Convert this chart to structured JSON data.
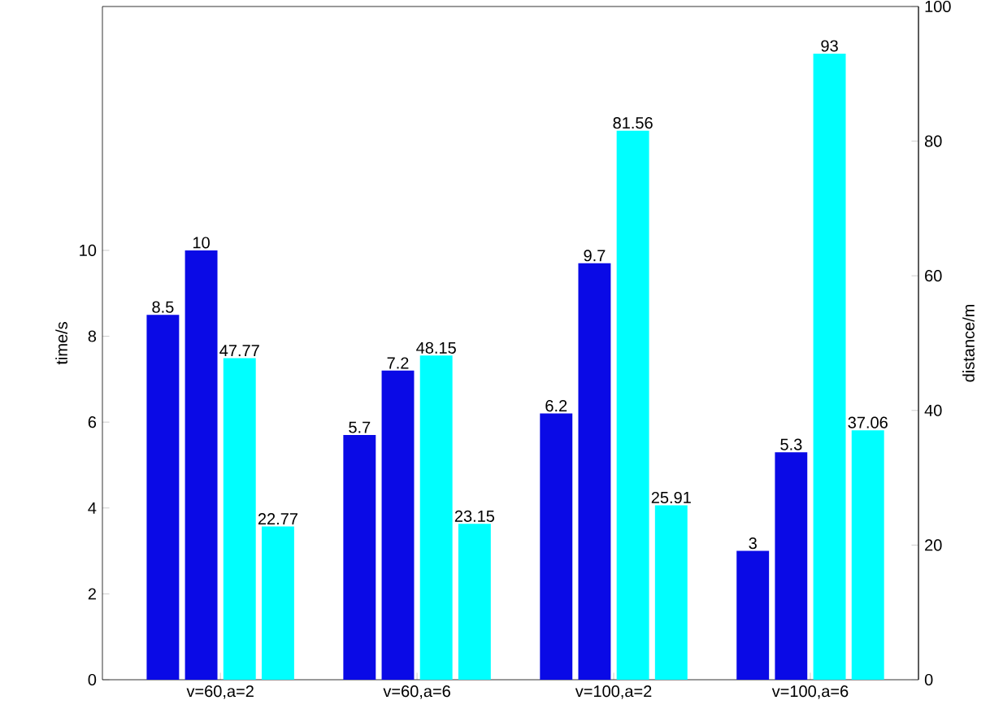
{
  "chart_data": {
    "type": "bar",
    "categories": [
      "v=60,a=2",
      "v=60,a=6",
      "v=100,a=2",
      "v=100,a=6"
    ],
    "ylabel": "time/s",
    "y2label": "distance/m",
    "ylim": [
      0,
      15.68
    ],
    "yticks": [
      0,
      2,
      4,
      6,
      8,
      10
    ],
    "y2lim": [
      0,
      100
    ],
    "y2ticks": [
      0,
      20,
      40,
      60,
      80,
      100
    ],
    "series": [
      {
        "color": "#0a0ae6",
        "values": [
          8.5,
          5.7,
          6.2,
          3
        ]
      },
      {
        "color": "#0a0ae6",
        "values": [
          10,
          7.2,
          9.7,
          5.3
        ]
      },
      {
        "color": "#00ffff",
        "values": [
          47.77,
          48.15,
          81.56,
          93
        ],
        "axis": "y2"
      },
      {
        "color": "#00ffff",
        "values": [
          22.77,
          23.15,
          25.91,
          37.06
        ],
        "axis": "y2"
      }
    ],
    "data_labels": true
  }
}
